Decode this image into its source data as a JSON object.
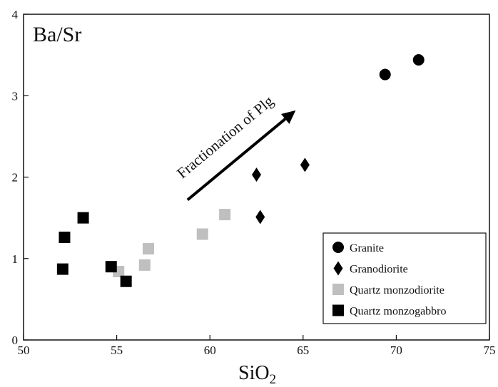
{
  "chart_data": {
    "type": "scatter",
    "title": "Ba/Sr",
    "xlabel": "SiO",
    "xlabel_subscript": "2",
    "ylabel": "",
    "xlim": [
      50,
      75
    ],
    "ylim": [
      0,
      4
    ],
    "xticks": [
      "50",
      "55",
      "60",
      "65",
      "70",
      "75"
    ],
    "yticks": [
      "0",
      "1",
      "2",
      "3",
      "4"
    ],
    "grid": false,
    "legend_position": "bottom-right",
    "annotation": {
      "text": "Fractionation of Plg",
      "from": [
        58.8,
        1.72
      ],
      "to": [
        64.6,
        2.82
      ]
    },
    "series": [
      {
        "name": "Granite",
        "marker": "circle",
        "color": "#000000",
        "points": [
          [
            69.4,
            3.26
          ],
          [
            71.2,
            3.44
          ]
        ]
      },
      {
        "name": "Granodiorite",
        "marker": "diamond",
        "color": "#000000",
        "points": [
          [
            62.5,
            2.03
          ],
          [
            62.7,
            1.51
          ],
          [
            65.1,
            2.15
          ]
        ]
      },
      {
        "name": "Quartz monzodiorite",
        "marker": "square",
        "color": "#bfbfbf",
        "points": [
          [
            55.1,
            0.84
          ],
          [
            56.5,
            0.92
          ],
          [
            56.7,
            1.12
          ],
          [
            59.6,
            1.3
          ],
          [
            60.8,
            1.54
          ]
        ]
      },
      {
        "name": "Quartz monzogabbro",
        "marker": "square",
        "color": "#000000",
        "points": [
          [
            52.1,
            0.87
          ],
          [
            52.2,
            1.26
          ],
          [
            53.2,
            1.5
          ],
          [
            54.7,
            0.9
          ],
          [
            55.5,
            0.72
          ]
        ]
      }
    ]
  }
}
